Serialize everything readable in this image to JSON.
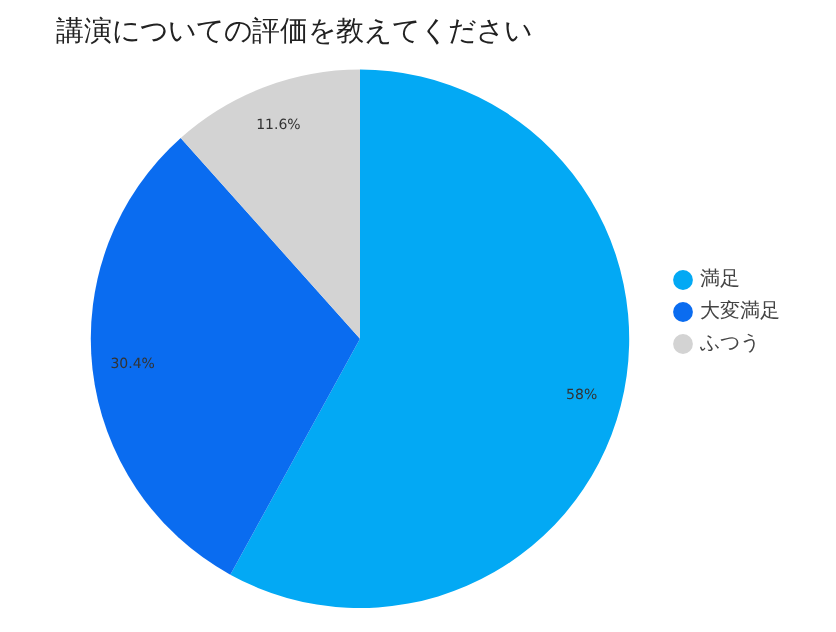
{
  "chart_data": {
    "type": "pie",
    "title": "講演についての評価を教えてください",
    "categories": [
      "満足",
      "大変満足",
      "ふつう"
    ],
    "values": [
      58,
      30.4,
      11.6
    ],
    "colors": [
      "#03a9f4",
      "#0a6cf0",
      "#d3d3d3"
    ],
    "value_labels": [
      "58%",
      "30.4%",
      "11.6%"
    ],
    "legend": "right"
  }
}
